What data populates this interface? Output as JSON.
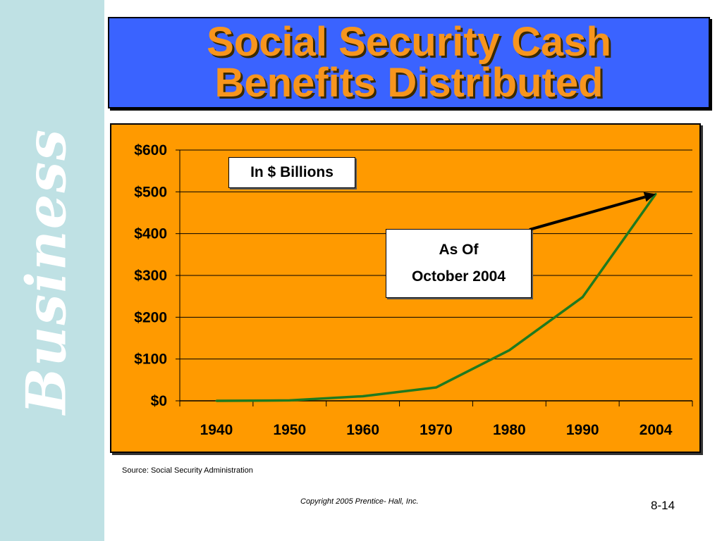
{
  "sidebar": {
    "word": "Business"
  },
  "title": {
    "line1": "Social Security Cash",
    "line2": "Benefits Distributed"
  },
  "chart_data": {
    "type": "line",
    "title": "Social Security Cash Benefits Distributed",
    "units_note": "In $ Billions",
    "annotation": {
      "line1": "As Of",
      "line2": "October 2004"
    },
    "categories": [
      "1940",
      "1950",
      "1960",
      "1970",
      "1980",
      "1990",
      "2004"
    ],
    "series": [
      {
        "values": [
          0,
          1,
          11,
          32,
          121,
          248,
          495
        ],
        "color": "#1f7a1f"
      }
    ],
    "yticks": [
      "$0",
      "$100",
      "$200",
      "$300",
      "$400",
      "$500",
      "$600"
    ],
    "ylim": [
      0,
      600
    ],
    "grid": true,
    "background": "#ff9a00"
  },
  "footer": {
    "source": "Source: Social Security Administration",
    "copyright": "Copyright 2005 Prentice- Hall, Inc.",
    "page": "8-14"
  }
}
